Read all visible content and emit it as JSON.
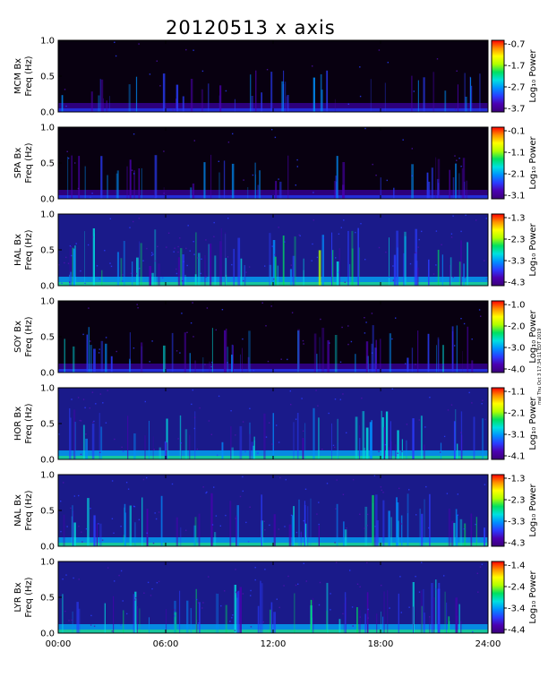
{
  "title": "20120513 x axis",
  "side_note": "mal Thu Oct 3 17:34:11 EDT 2019",
  "colorbar_label": "Log₁₀ Power",
  "colorscale": [
    "#3a007a",
    "#4b00b0",
    "#2a3cff",
    "#0090ff",
    "#00e0e0",
    "#00e060",
    "#b0ff00",
    "#ffff00",
    "#ff9000",
    "#ff0000"
  ],
  "chart_data": {
    "type": "heatmap",
    "x_ticks": [
      "00:00",
      "06:00",
      "12:00",
      "18:00",
      "24:00"
    ],
    "xlim": [
      0,
      24
    ],
    "ylim": [
      0.0,
      1.0
    ],
    "y_ticks": [
      "0.0",
      "0.5",
      "1.0"
    ],
    "panels": [
      {
        "station": "MCM",
        "ylabel": "MCM Bx",
        "ylabel2": "Freq (Hz)",
        "cbar_ticks": [
          "-0.7",
          "-1.7",
          "-2.7",
          "-3.7"
        ],
        "level": 0.08
      },
      {
        "station": "SPA",
        "ylabel": "SPA Bx",
        "ylabel2": "Freq (Hz)",
        "cbar_ticks": [
          "-0.1",
          "-1.1",
          "-2.1",
          "-3.1"
        ],
        "level": 0.12
      },
      {
        "station": "HAL",
        "ylabel": "HAL Bx",
        "ylabel2": "Freq (Hz)",
        "cbar_ticks": [
          "-1.3",
          "-2.3",
          "-3.3",
          "-4.3"
        ],
        "level": 0.38
      },
      {
        "station": "SOY",
        "ylabel": "SOY Bx",
        "ylabel2": "Freq (Hz)",
        "cbar_ticks": [
          "-1.0",
          "-2.0",
          "-3.0",
          "-4.0"
        ],
        "level": 0.2
      },
      {
        "station": "HOR",
        "ylabel": "HOR Bx",
        "ylabel2": "Freq (Hz)",
        "cbar_ticks": [
          "-1.1",
          "-2.1",
          "-3.1",
          "-4.1"
        ],
        "level": 0.28
      },
      {
        "station": "NAL",
        "ylabel": "NAL Bx",
        "ylabel2": "Freq (Hz)",
        "cbar_ticks": [
          "-1.3",
          "-2.3",
          "-3.3",
          "-4.3"
        ],
        "level": 0.3
      },
      {
        "station": "LYR",
        "ylabel": "LYR Bx",
        "ylabel2": "Freq (Hz)",
        "cbar_ticks": [
          "-1.4",
          "-2.4",
          "-3.4",
          "-4.4"
        ],
        "level": 0.3
      }
    ]
  }
}
